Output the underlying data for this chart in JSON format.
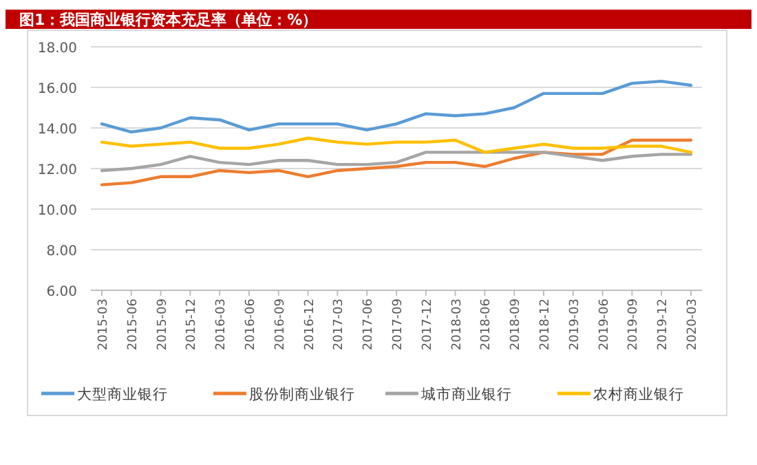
{
  "chart_data": {
    "type": "line",
    "title": "图1：我国商业银行资本充足率（单位：%）",
    "categories": [
      "2015-03",
      "2015-06",
      "2015-09",
      "2015-12",
      "2016-03",
      "2016-06",
      "2016-09",
      "2016-12",
      "2017-03",
      "2017-06",
      "2017-09",
      "2017-12",
      "2018-03",
      "2018-06",
      "2018-09",
      "2018-12",
      "2019-03",
      "2019-06",
      "2019-09",
      "2019-12",
      "2020-03"
    ],
    "series": [
      {
        "name": "大型商业银行",
        "color": "#5b9bd5",
        "values": [
          14.2,
          13.8,
          14.0,
          14.5,
          14.4,
          13.9,
          14.2,
          14.2,
          14.2,
          13.9,
          14.2,
          14.7,
          14.6,
          14.7,
          15.0,
          15.7,
          15.7,
          15.7,
          16.2,
          16.3,
          16.1
        ]
      },
      {
        "name": "股份制商业银行",
        "color": "#ed7d31",
        "values": [
          11.2,
          11.3,
          11.6,
          11.6,
          11.9,
          11.8,
          11.9,
          11.6,
          11.9,
          12.0,
          12.1,
          12.3,
          12.3,
          12.1,
          12.5,
          12.8,
          12.7,
          12.7,
          13.4,
          13.4,
          13.4
        ]
      },
      {
        "name": "城市商业银行",
        "color": "#a5a5a5",
        "values": [
          11.9,
          12.0,
          12.2,
          12.6,
          12.3,
          12.2,
          12.4,
          12.4,
          12.2,
          12.2,
          12.3,
          12.8,
          12.8,
          12.8,
          12.8,
          12.8,
          12.6,
          12.4,
          12.6,
          12.7,
          12.7
        ]
      },
      {
        "name": "农村商业银行",
        "color": "#ffc000",
        "values": [
          13.3,
          13.1,
          13.2,
          13.3,
          13.0,
          13.0,
          13.2,
          13.5,
          13.3,
          13.2,
          13.3,
          13.3,
          13.4,
          12.8,
          13.0,
          13.2,
          13.0,
          13.0,
          13.1,
          13.1,
          12.8
        ]
      }
    ],
    "ylim": [
      6,
      18
    ],
    "yticks": [
      {
        "value": 6,
        "label": "6.00"
      },
      {
        "value": 8,
        "label": "8.00"
      },
      {
        "value": 10,
        "label": "10.00"
      },
      {
        "value": 12,
        "label": "12.00"
      },
      {
        "value": 14,
        "label": "14.00"
      },
      {
        "value": 16,
        "label": "16.00"
      },
      {
        "value": 18,
        "label": "18.00"
      }
    ],
    "grid": "y",
    "legend": "bottom"
  }
}
